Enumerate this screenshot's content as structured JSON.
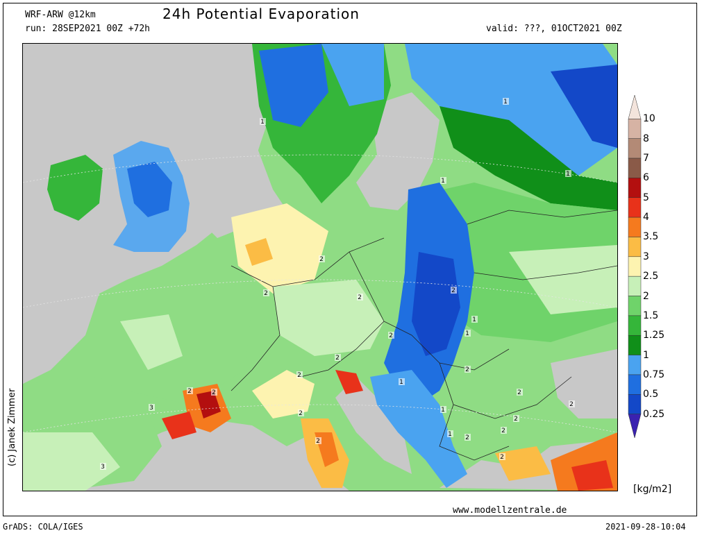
{
  "header": {
    "model": "WRF-ARW @12km",
    "run": "run: 28SEP2021 00Z +72h",
    "title": "24h Potential Evaporation",
    "valid": "valid: ???, 01OCT2021 00Z"
  },
  "colorbar": {
    "unit": "[kg/m2]",
    "levels": [
      {
        "label": "10",
        "color": "#f3e4dc"
      },
      {
        "label": "8",
        "color": "#d6b3a4"
      },
      {
        "label": "7",
        "color": "#b38a76"
      },
      {
        "label": "6",
        "color": "#8a5a48"
      },
      {
        "label": "5",
        "color": "#b30f0f"
      },
      {
        "label": "4",
        "color": "#e8321a"
      },
      {
        "label": "3.5",
        "color": "#f57a1e"
      },
      {
        "label": "3",
        "color": "#fbbc45"
      },
      {
        "label": "2.5",
        "color": "#fdf3b0"
      },
      {
        "label": "2",
        "color": "#c7f0b8"
      },
      {
        "label": "1.5",
        "color": "#6fd36a"
      },
      {
        "label": "1.25",
        "color": "#35b63a"
      },
      {
        "label": "1",
        "color": "#108f19"
      },
      {
        "label": "0.75",
        "color": "#4aa3f0"
      },
      {
        "label": "0.5",
        "color": "#1f6fe0"
      },
      {
        "label": "0.25",
        "color": "#1348c8"
      },
      {
        "label": "",
        "color": "#3a22b0"
      }
    ]
  },
  "map": {
    "ocean_color": "#c8c8c8",
    "contour_labels": [
      "1",
      "1",
      "1",
      "1",
      "2",
      "2",
      "2",
      "2",
      "2",
      "2",
      "2",
      "2",
      "2",
      "2",
      "3",
      "3",
      "2",
      "1",
      "1",
      "1",
      "1",
      "2",
      "2",
      "2",
      "2",
      "2",
      "2",
      "2",
      "1"
    ]
  },
  "footer": {
    "left": "GrADS: COLA/IGES",
    "website": "www.modellzentrale.de",
    "timestamp": "2021-09-28-10:04",
    "copyright": "(c) Janek Zimmer"
  }
}
